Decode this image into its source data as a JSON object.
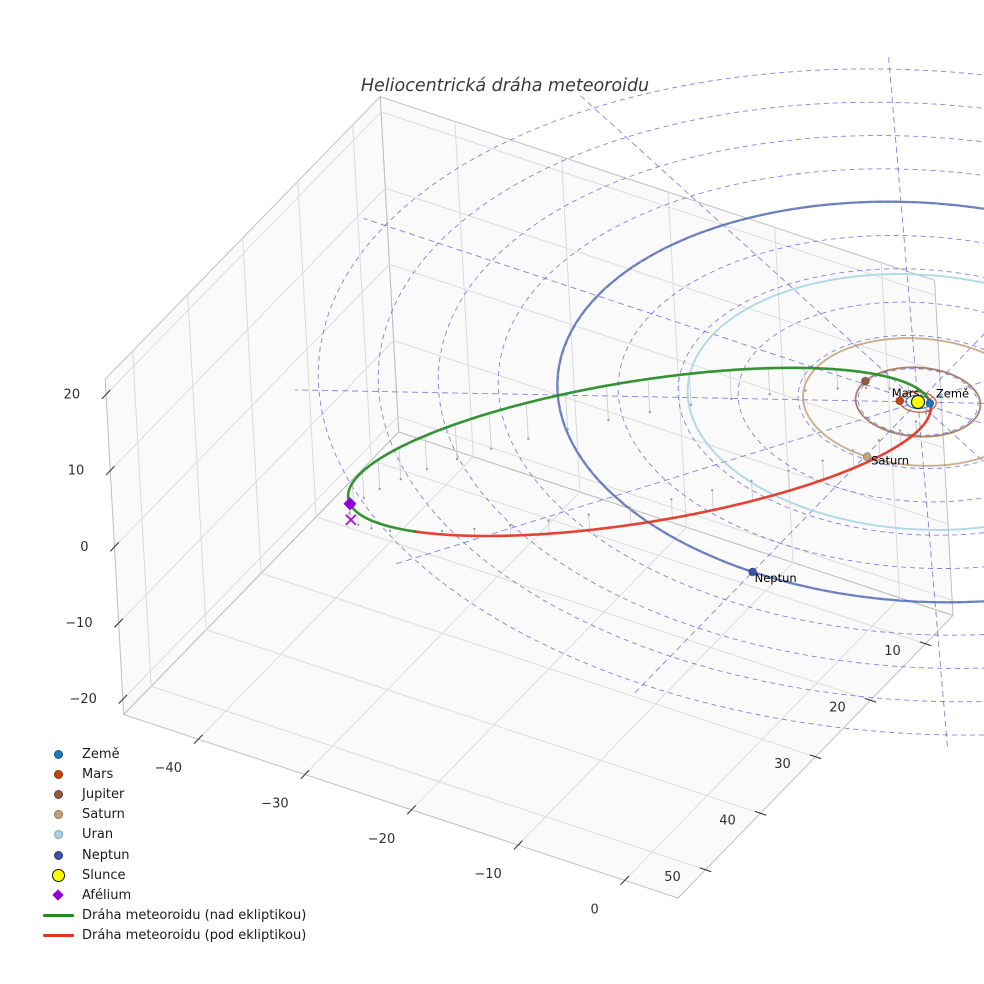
{
  "title": "Heliocentrická dráha meteoroidu",
  "chart_data": {
    "type": "line",
    "subtype": "3d-heliocentric-orbit-plot",
    "title": "Heliocentrická dráha meteoroidu",
    "units": "AU",
    "grid": true,
    "legend_position": "lower-left",
    "axes": {
      "x": {
        "ticks": [
          -40,
          -30,
          -20,
          -10,
          0
        ],
        "range": [
          -47,
          5
        ]
      },
      "y": {
        "ticks": [
          10,
          20,
          30,
          40,
          50
        ],
        "range": [
          5,
          55
        ]
      },
      "z": {
        "ticks": [
          -20,
          -10,
          0,
          10,
          20
        ],
        "range": [
          -22,
          22
        ]
      }
    },
    "sun": {
      "label": "Slunce",
      "color": "#ffff00",
      "edge_color": "#222222",
      "position_au": [
        0,
        0,
        0
      ]
    },
    "planets": [
      {
        "name": "Země",
        "color": "#1f77b4",
        "orbit_color": "#1f77b4",
        "orbit_radius_au": 1.0,
        "longitude_deg": -21,
        "orbit_width": 1.3,
        "label_visible": true
      },
      {
        "name": "Mars",
        "color": "#c1440e",
        "orbit_color": "#c1440e",
        "orbit_radius_au": 1.52,
        "longitude_deg": 155,
        "orbit_width": 1.3,
        "label_visible": true
      },
      {
        "name": "Jupiter",
        "color": "#8f5a42",
        "orbit_color": "#9a6a50",
        "orbit_radius_au": 5.2,
        "longitude_deg": 185,
        "orbit_width": 1.8,
        "label_visible": false
      },
      {
        "name": "Saturn",
        "color": "#c2a278",
        "orbit_color": "#c2a278",
        "orbit_radius_au": 9.58,
        "longitude_deg": 89,
        "orbit_width": 1.9,
        "label_visible": true
      },
      {
        "name": "Uran",
        "color": "#a8d4e4",
        "orbit_color": "#a2d2e2",
        "orbit_radius_au": 19.2,
        "longitude_deg": -35,
        "orbit_width": 1.9,
        "label_visible": false
      },
      {
        "name": "Neptun",
        "color": "#3c51a7",
        "orbit_color": "#5870b5",
        "orbit_radius_au": 30.07,
        "longitude_deg": 90,
        "orbit_width": 2.3,
        "label_visible": true
      }
    ],
    "meteoroid": {
      "perihelion_au": 1.0,
      "aphelion_xyz_au": [
        -32.1,
        40.9,
        2.1
      ],
      "z_amplitude_au": 4.0,
      "above_ecliptic": {
        "label": "Dráha meteoroidu (nad ekliptikou)",
        "color": "#228b22"
      },
      "below_ecliptic": {
        "label": "Dráha meteoroidu (pod ekliptikou)",
        "color": "#e23323"
      },
      "aphelion_marker": {
        "label": "Afélium",
        "color": "#9400d3"
      }
    },
    "ecliptic_grid": {
      "color": "#3434cf",
      "circle_radii_au": [
        5,
        10,
        15,
        20,
        25,
        30,
        35,
        40,
        45,
        50
      ],
      "ray_step_deg": 30,
      "ray_length_au": 52
    },
    "projection_stems": {
      "color": "#c4c4c4",
      "dot_color": "#9e9e9e",
      "count": 44
    }
  },
  "legend": {
    "items": [
      {
        "label": "Země",
        "marker": "dot",
        "color": "#1f77b4"
      },
      {
        "label": "Mars",
        "marker": "dot",
        "color": "#c1440e"
      },
      {
        "label": "Jupiter",
        "marker": "dot",
        "color": "#8f5a42"
      },
      {
        "label": "Saturn",
        "marker": "dot",
        "color": "#c2a278"
      },
      {
        "label": "Uran",
        "marker": "dot",
        "color": "#a8d4e4"
      },
      {
        "label": "Neptun",
        "marker": "dot",
        "color": "#3c51a7"
      },
      {
        "label": "Slunce",
        "marker": "circle",
        "color": "#ffff00"
      },
      {
        "label": "Afélium",
        "marker": "diamond",
        "color": "#9400d3"
      },
      {
        "label": "Dráha meteoroidu (nad ekliptikou)",
        "marker": "line",
        "color": "#228b22"
      },
      {
        "label": "Dráha meteoroidu (pod ekliptikou)",
        "marker": "line",
        "color": "#e23323"
      }
    ]
  }
}
